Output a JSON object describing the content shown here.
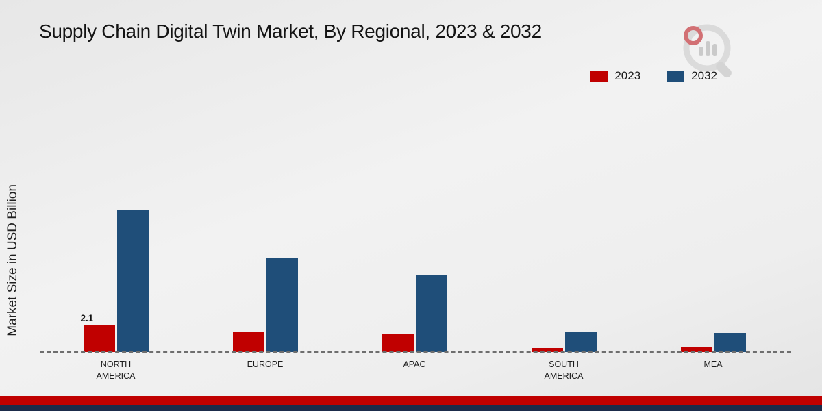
{
  "title": "Supply Chain Digital Twin Market, By Regional, 2023 & 2032",
  "ylabel": "Market Size in USD Billion",
  "legend": {
    "items": [
      {
        "label": "2023",
        "color": "#c00000"
      },
      {
        "label": "2032",
        "color": "#1f4e79"
      }
    ]
  },
  "colors": {
    "series_2023": "#c00000",
    "series_2032": "#1f4e79",
    "footer_red": "#c00000",
    "footer_navy": "#1b2b4a",
    "baseline": "#6e6e6e"
  },
  "chart_data": {
    "type": "bar",
    "categories": [
      [
        "NORTH",
        "AMERICA"
      ],
      [
        "EUROPE"
      ],
      [
        "APAC"
      ],
      [
        "SOUTH",
        "AMERICA"
      ],
      [
        "MEA"
      ]
    ],
    "series": [
      {
        "name": "2023",
        "color": "#c00000",
        "values": [
          2.1,
          1.5,
          1.4,
          0.3,
          0.4
        ]
      },
      {
        "name": "2032",
        "color": "#1f4e79",
        "values": [
          10.9,
          7.2,
          5.9,
          1.5,
          1.45
        ]
      }
    ],
    "value_labels": [
      {
        "series": "2023",
        "category_index": 0,
        "text": "2.1"
      }
    ],
    "ylabel": "Market Size in USD Billion",
    "xlabel": "",
    "ylim": [
      0,
      12
    ],
    "legend_position": "top-right",
    "grid": false,
    "baseline_style": "dashed"
  }
}
